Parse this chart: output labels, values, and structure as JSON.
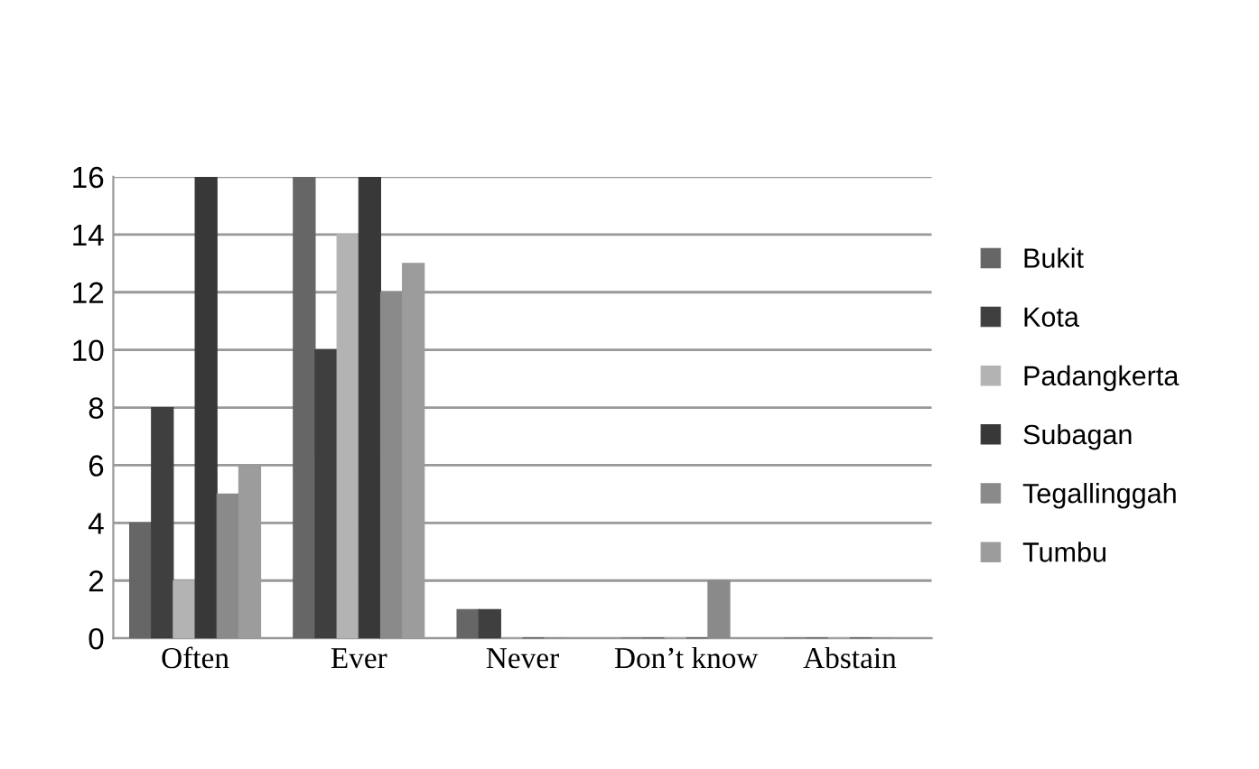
{
  "chart_data": {
    "type": "bar",
    "categories": [
      "Often",
      "Ever",
      "Never",
      "Don’t know",
      "Abstain"
    ],
    "series": [
      {
        "name": "Bukit",
        "color": "#666666",
        "values": [
          4,
          16,
          1,
          0,
          0
        ]
      },
      {
        "name": "Kota",
        "color": "#3f3f3f",
        "values": [
          8,
          10,
          1,
          0,
          0
        ]
      },
      {
        "name": "Padangkerta",
        "color": "#b3b3b3",
        "values": [
          2,
          14,
          0,
          0,
          0
        ]
      },
      {
        "name": "Subagan",
        "color": "#383838",
        "values": [
          16,
          16,
          0,
          0,
          0
        ]
      },
      {
        "name": "Tegallinggah",
        "color": "#8a8a8a",
        "values": [
          5,
          12,
          0,
          2,
          0
        ]
      },
      {
        "name": "Tumbu",
        "color": "#9c9c9c",
        "values": [
          6,
          13,
          0,
          0,
          0
        ]
      }
    ],
    "ylim": [
      0,
      16
    ],
    "yticks": [
      0,
      2,
      4,
      6,
      8,
      10,
      12,
      14,
      16
    ],
    "grid": "y",
    "legend": "right"
  }
}
